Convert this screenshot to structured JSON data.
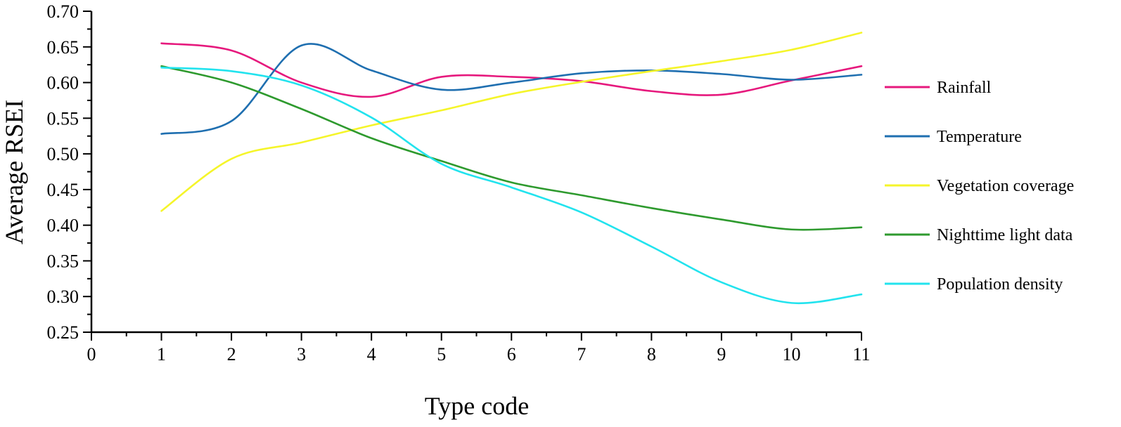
{
  "chart_data": {
    "type": "line",
    "title": "",
    "xlabel": "Type code",
    "ylabel": "Average RSEI",
    "xlim": [
      0,
      11
    ],
    "ylim": [
      0.25,
      0.7
    ],
    "x_ticks": [
      "0",
      "1",
      "2",
      "3",
      "4",
      "5",
      "6",
      "7",
      "8",
      "9",
      "10",
      "11"
    ],
    "y_ticks": [
      "0.25",
      "0.30",
      "0.35",
      "0.40",
      "0.45",
      "0.50",
      "0.55",
      "0.60",
      "0.65",
      "0.70"
    ],
    "grid": false,
    "legend_position": "right",
    "x": [
      1,
      2,
      3,
      4,
      5,
      6,
      7,
      8,
      9,
      10,
      11
    ],
    "series": [
      {
        "name": "Rainfall",
        "color": "#e6197d",
        "values": [
          0.655,
          0.645,
          0.6,
          0.58,
          0.608,
          0.608,
          0.602,
          0.588,
          0.583,
          0.603,
          0.623
        ]
      },
      {
        "name": "Temperature",
        "color": "#1f6fb0",
        "values": [
          0.528,
          0.546,
          0.652,
          0.617,
          0.59,
          0.6,
          0.613,
          0.617,
          0.612,
          0.604,
          0.611
        ]
      },
      {
        "name": "Vegetation coverage",
        "color": "#f5f52a",
        "values": [
          0.42,
          0.493,
          0.516,
          0.54,
          0.561,
          0.584,
          0.601,
          0.616,
          0.63,
          0.646,
          0.67
        ]
      },
      {
        "name": "Nighttime light data",
        "color": "#2e9a2e",
        "values": [
          0.623,
          0.6,
          0.563,
          0.522,
          0.49,
          0.46,
          0.442,
          0.424,
          0.408,
          0.394,
          0.397
        ]
      },
      {
        "name": "Population density",
        "color": "#22e3ee",
        "values": [
          0.621,
          0.616,
          0.596,
          0.551,
          0.486,
          0.453,
          0.418,
          0.37,
          0.32,
          0.291,
          0.303
        ]
      }
    ]
  }
}
